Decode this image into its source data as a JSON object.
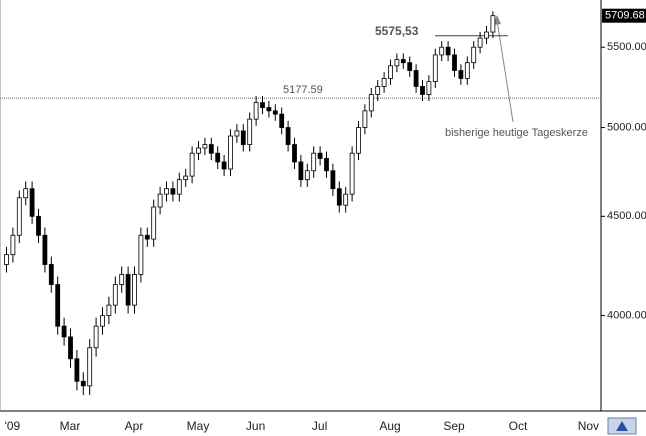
{
  "chart_data": {
    "type": "candlestick",
    "categories": [
      null,
      "'09",
      null,
      null,
      null,
      null,
      null,
      null,
      null,
      null,
      "Mar",
      null,
      null,
      null,
      null,
      null,
      null,
      null,
      null,
      null,
      "Apr",
      null,
      null,
      null,
      null,
      null,
      null,
      null,
      null,
      null,
      "May",
      null,
      null,
      null,
      null,
      null,
      null,
      null,
      null,
      "Jun",
      null,
      null,
      null,
      null,
      null,
      null,
      null,
      null,
      null,
      "Jul",
      null,
      null,
      null,
      null,
      null,
      null,
      null,
      null,
      null,
      null,
      "Aug",
      null,
      null,
      null,
      null,
      null,
      null,
      null,
      null,
      null,
      "Sep",
      null,
      null,
      null,
      null,
      null,
      null,
      null,
      null,
      null,
      "Oct",
      null,
      null,
      null,
      null,
      null,
      null,
      null,
      null,
      null,
      null,
      "Nov",
      null
    ],
    "open": [
      4250,
      4300,
      4400,
      4600,
      4650,
      4500,
      4400,
      4250,
      4150,
      3950,
      3900,
      3800,
      3700,
      3680,
      3850,
      3950,
      4000,
      4050,
      4150,
      4200,
      4050,
      4200,
      4400,
      4380,
      4550,
      4620,
      4650,
      4620,
      4700,
      4720,
      4850,
      4880,
      4900,
      4850,
      4800,
      4760,
      4950,
      4980,
      4900,
      5050,
      5150,
      5120,
      5100,
      5080,
      5000,
      4900,
      4800,
      4700,
      4750,
      4850,
      4820,
      4750,
      4650,
      4560,
      4620,
      4850,
      5000,
      5100,
      5200,
      5250,
      5300,
      5380,
      5420,
      5400,
      5350,
      5250,
      5200,
      5280,
      5450,
      5500,
      5450,
      5350,
      5300,
      5400,
      5500,
      5560,
      5600,
      null,
      null,
      null,
      null,
      null,
      null,
      null,
      null,
      null,
      null,
      null,
      null,
      null,
      null,
      null,
      null
    ],
    "high": [
      4340,
      4440,
      4640,
      4690,
      4690,
      4540,
      4440,
      4290,
      4190,
      3990,
      3940,
      3840,
      3740,
      3890,
      3990,
      4040,
      4090,
      4190,
      4240,
      4240,
      4240,
      4440,
      4440,
      4590,
      4660,
      4690,
      4690,
      4740,
      4760,
      4890,
      4920,
      4940,
      4940,
      4890,
      4840,
      4990,
      5020,
      5020,
      5090,
      5190,
      5190,
      5160,
      5140,
      5120,
      5040,
      4940,
      4840,
      4790,
      4890,
      4890,
      4860,
      4790,
      4690,
      4660,
      4890,
      5040,
      5140,
      5240,
      5290,
      5340,
      5420,
      5460,
      5460,
      5440,
      5390,
      5290,
      5320,
      5490,
      5540,
      5540,
      5490,
      5390,
      5440,
      5540,
      5600,
      5640,
      5740,
      null,
      null,
      null,
      null,
      null,
      null,
      null,
      null,
      null,
      null,
      null,
      null,
      null,
      null,
      null,
      null
    ],
    "low": [
      4210,
      4260,
      4360,
      4560,
      4460,
      4360,
      4210,
      4110,
      3910,
      3860,
      3760,
      3660,
      3640,
      3640,
      3810,
      3910,
      3960,
      4010,
      4110,
      4010,
      4010,
      4160,
      4340,
      4340,
      4510,
      4580,
      4580,
      4580,
      4660,
      4680,
      4810,
      4840,
      4810,
      4760,
      4720,
      4720,
      4910,
      4860,
      4860,
      5010,
      5080,
      5060,
      5040,
      4960,
      4860,
      4760,
      4660,
      4660,
      4710,
      4780,
      4710,
      4610,
      4520,
      4520,
      4580,
      4810,
      4960,
      5060,
      5160,
      5210,
      5260,
      5340,
      5360,
      5310,
      5210,
      5160,
      5160,
      5240,
      5410,
      5410,
      5310,
      5260,
      5260,
      5360,
      5460,
      5520,
      5560,
      null,
      null,
      null,
      null,
      null,
      null,
      null,
      null,
      null,
      null,
      null,
      null,
      null,
      null,
      null,
      null
    ],
    "close": [
      4300,
      4400,
      4600,
      4650,
      4500,
      4400,
      4250,
      4150,
      3950,
      3900,
      3800,
      3700,
      3680,
      3850,
      3950,
      4000,
      4050,
      4150,
      4200,
      4050,
      4200,
      4400,
      4380,
      4550,
      4620,
      4650,
      4620,
      4700,
      4720,
      4850,
      4880,
      4900,
      4850,
      4800,
      4760,
      4950,
      4980,
      4900,
      5050,
      5150,
      5120,
      5100,
      5080,
      5000,
      4900,
      4800,
      4700,
      4750,
      4850,
      4820,
      4750,
      4650,
      4560,
      4620,
      4850,
      5000,
      5100,
      5200,
      5250,
      5300,
      5380,
      5420,
      5400,
      5350,
      5250,
      5200,
      5280,
      5450,
      5500,
      5450,
      5350,
      5300,
      5400,
      5500,
      5560,
      5600,
      5709.68,
      null,
      null,
      null,
      null,
      null,
      null,
      null,
      null,
      null,
      null,
      null,
      null,
      null,
      null,
      null,
      null
    ],
    "up_color": "#ffffff",
    "down_color": "#000000",
    "ylim": [
      3576,
      5817
    ],
    "log_scale": true,
    "yticks": [
      {
        "value": 4000,
        "label": "4000.00"
      },
      {
        "value": 4500,
        "label": "4500.00"
      },
      {
        "value": 5000,
        "label": "5000.00"
      },
      {
        "value": 5500,
        "label": "5500.00"
      }
    ],
    "reference_lines": [
      {
        "value": 5177.59,
        "label": "5177.59"
      },
      {
        "value": 5575.53,
        "label": "5575,53"
      }
    ],
    "annotation": "bisherige heutige Tageskerze"
  }
}
